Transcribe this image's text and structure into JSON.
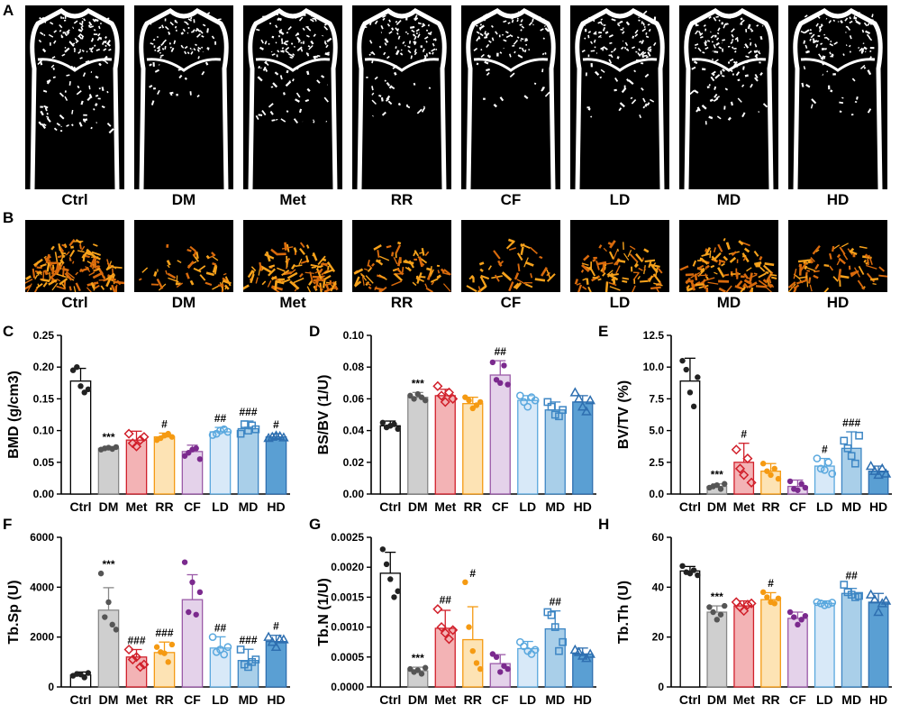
{
  "panels": {
    "A": "A",
    "B": "B",
    "C": "C",
    "D": "D",
    "E": "E",
    "F": "F",
    "G": "G",
    "H": "H"
  },
  "groups": [
    "Ctrl",
    "DM",
    "Met",
    "RR",
    "CF",
    "LD",
    "MD",
    "HD"
  ],
  "colors": {
    "fill": [
      "#ffffff",
      "#cfcfcf",
      "#f3b3b5",
      "#fde3b4",
      "#e4d2ea",
      "#d8e9f8",
      "#a9cfe9",
      "#5a9fd3"
    ],
    "point": [
      "#222222",
      "#555555",
      "#d11f2a",
      "#f59a12",
      "#7b2a8e",
      "#5aa8de",
      "#3d86c4",
      "#2e6fb0"
    ],
    "bar_edge": [
      "#000000",
      "#888888",
      "#d11f2a",
      "#f59a12",
      "#9b5aa8",
      "#5aa8de",
      "#3d86c4",
      "#2e6fb0"
    ],
    "markers": [
      "dot",
      "dot",
      "diamond",
      "dot",
      "dot",
      "circle",
      "square",
      "triangle"
    ]
  },
  "chart_data": [
    {
      "id": "C",
      "type": "bar",
      "ylabel": "BMD (g/cm3)",
      "ylim": [
        0,
        0.25
      ],
      "yticks": [
        "0.00",
        "0.05",
        "0.10",
        "0.15",
        "0.20",
        "0.25"
      ],
      "categories": [
        "Ctrl",
        "DM",
        "Met",
        "RR",
        "CF",
        "LD",
        "MD",
        "HD"
      ],
      "values": [
        0.178,
        0.072,
        0.085,
        0.09,
        0.067,
        0.098,
        0.103,
        0.09
      ],
      "errors": [
        0.02,
        0.003,
        0.014,
        0.006,
        0.01,
        0.007,
        0.012,
        0.005
      ],
      "points": [
        [
          0.195,
          0.2,
          0.17,
          0.16,
          0.165
        ],
        [
          0.07,
          0.072,
          0.073,
          0.071,
          0.074
        ],
        [
          0.095,
          0.08,
          0.075,
          0.085,
          0.09
        ],
        [
          0.085,
          0.088,
          0.092,
          0.095,
          0.09
        ],
        [
          0.06,
          0.065,
          0.07,
          0.072,
          0.055
        ],
        [
          0.093,
          0.095,
          0.1,
          0.102,
          0.098
        ],
        [
          0.095,
          0.11,
          0.1,
          0.108,
          0.102
        ],
        [
          0.088,
          0.09,
          0.092,
          0.091,
          0.089
        ]
      ],
      "annotations": [
        "",
        "***",
        "",
        "#",
        "",
        "##",
        "###",
        "#"
      ]
    },
    {
      "id": "D",
      "type": "bar",
      "ylabel": "BS/BV (1/U)",
      "ylim": [
        0,
        0.1
      ],
      "yticks": [
        "0.00",
        "0.02",
        "0.04",
        "0.06",
        "0.08",
        "0.10"
      ],
      "categories": [
        "Ctrl",
        "DM",
        "Met",
        "RR",
        "CF",
        "LD",
        "MD",
        "HD"
      ],
      "values": [
        0.043,
        0.061,
        0.062,
        0.057,
        0.075,
        0.059,
        0.053,
        0.058
      ],
      "errors": [
        0.003,
        0.003,
        0.004,
        0.004,
        0.009,
        0.003,
        0.005,
        0.004
      ],
      "points": [
        [
          0.045,
          0.042,
          0.043,
          0.044,
          0.041
        ],
        [
          0.062,
          0.06,
          0.063,
          0.061,
          0.059
        ],
        [
          0.068,
          0.062,
          0.058,
          0.064,
          0.06
        ],
        [
          0.061,
          0.059,
          0.054,
          0.056,
          0.058
        ],
        [
          0.083,
          0.072,
          0.07,
          0.081,
          0.069
        ],
        [
          0.062,
          0.058,
          0.055,
          0.061,
          0.059
        ],
        [
          0.058,
          0.055,
          0.05,
          0.049,
          0.053
        ],
        [
          0.064,
          0.06,
          0.055,
          0.052,
          0.059
        ]
      ],
      "annotations": [
        "",
        "***",
        "",
        "",
        "##",
        "",
        "",
        ""
      ]
    },
    {
      "id": "E",
      "type": "bar",
      "ylabel": "BV/TV (%)",
      "ylim": [
        0,
        12.5
      ],
      "yticks": [
        "0.0",
        "2.5",
        "5.0",
        "7.5",
        "10.0",
        "12.5"
      ],
      "categories": [
        "Ctrl",
        "DM",
        "Met",
        "RR",
        "CF",
        "LD",
        "MD",
        "HD"
      ],
      "values": [
        8.9,
        0.6,
        2.5,
        1.8,
        0.6,
        2.2,
        3.6,
        1.8
      ],
      "errors": [
        1.8,
        0.2,
        1.5,
        0.6,
        0.5,
        0.6,
        1.3,
        0.4
      ],
      "points": [
        [
          10.5,
          9.8,
          8.0,
          6.9,
          9.2
        ],
        [
          0.5,
          0.6,
          0.7,
          0.4,
          0.8
        ],
        [
          3.5,
          2.0,
          1.5,
          2.8,
          0.9
        ],
        [
          2.4,
          1.8,
          1.5,
          2.0,
          1.2
        ],
        [
          1.0,
          0.4,
          0.3,
          0.8,
          0.5
        ],
        [
          2.8,
          2.0,
          1.9,
          2.5,
          1.6
        ],
        [
          4.2,
          3.6,
          3.0,
          2.4,
          4.6
        ],
        [
          2.2,
          1.8,
          1.5,
          2.0,
          1.6
        ]
      ],
      "annotations": [
        "",
        "***",
        "#",
        "",
        "",
        "#",
        "###",
        ""
      ]
    },
    {
      "id": "F",
      "type": "bar",
      "ylabel": "Tb.Sp (U)",
      "ylim": [
        0,
        6000
      ],
      "yticks": [
        "0",
        "2000",
        "4000",
        "6000"
      ],
      "categories": [
        "Ctrl",
        "DM",
        "Met",
        "RR",
        "CF",
        "LD",
        "MD",
        "HD"
      ],
      "values": [
        480,
        3080,
        1200,
        1380,
        3500,
        1560,
        1060,
        1820
      ],
      "errors": [
        120,
        900,
        300,
        420,
        1000,
        450,
        450,
        250
      ],
      "points": [
        [
          450,
          520,
          500,
          380,
          560
        ],
        [
          4550,
          2800,
          3400,
          2500,
          2300
        ],
        [
          1500,
          1100,
          1200,
          800,
          900
        ],
        [
          1600,
          1400,
          1350,
          1000,
          1700
        ],
        [
          5000,
          3000,
          4200,
          2900,
          3800
        ],
        [
          2000,
          1400,
          1500,
          1300,
          1600
        ],
        [
          1500,
          900,
          800,
          1000,
          1100
        ],
        [
          2000,
          1800,
          1600,
          1900,
          1900
        ]
      ],
      "annotations": [
        "",
        "***",
        "###",
        "###",
        "",
        "##",
        "###",
        "#"
      ]
    },
    {
      "id": "G",
      "type": "bar",
      "ylabel": "Tb.N (1/U)",
      "ylim": [
        0,
        0.0025
      ],
      "yticks": [
        "0.0000",
        "0.0005",
        "0.0010",
        "0.0015",
        "0.0020",
        "0.0025"
      ],
      "categories": [
        "Ctrl",
        "DM",
        "Met",
        "RR",
        "CF",
        "LD",
        "MD",
        "HD"
      ],
      "values": [
        0.0019,
        0.00027,
        0.00098,
        0.00079,
        0.00039,
        0.00064,
        0.00097,
        0.00055
      ],
      "errors": [
        0.00035,
        6e-05,
        0.0003,
        0.00055,
        0.00015,
        0.00012,
        0.0003,
        0.0001
      ],
      "points": [
        [
          0.0023,
          0.00205,
          0.0018,
          0.0015,
          0.0016
        ],
        [
          0.0003,
          0.00025,
          0.00028,
          0.00022,
          0.00032
        ],
        [
          0.0013,
          0.001,
          0.0009,
          0.0008,
          0.00095
        ],
        [
          0.00175,
          0.001,
          0.0006,
          0.0004,
          0.0003
        ],
        [
          0.00055,
          0.0005,
          0.00025,
          0.00035,
          0.0003
        ],
        [
          0.00075,
          0.00068,
          0.0006,
          0.00055,
          0.00062
        ],
        [
          0.00125,
          0.0012,
          0.001,
          0.0006,
          0.00075
        ],
        [
          0.00062,
          0.00058,
          0.00052,
          0.00048,
          0.00055
        ]
      ],
      "annotations": [
        "",
        "***",
        "##",
        "#",
        "",
        "",
        "##",
        ""
      ]
    },
    {
      "id": "H",
      "type": "bar",
      "ylabel": "Tb.Th (U)",
      "ylim": [
        0,
        60
      ],
      "yticks": [
        "0",
        "20",
        "40",
        "60"
      ],
      "categories": [
        "Ctrl",
        "DM",
        "Met",
        "RR",
        "CF",
        "LD",
        "MD",
        "HD"
      ],
      "values": [
        46.5,
        30.0,
        32.5,
        35.0,
        27.5,
        33.5,
        37.5,
        34.0
      ],
      "errors": [
        1.8,
        2.5,
        2.0,
        2.8,
        2.5,
        1.0,
        2.0,
        3.5
      ],
      "points": [
        [
          48.5,
          46.0,
          45.5,
          46.8,
          44.8
        ],
        [
          32.0,
          30.0,
          27.0,
          29.0,
          32.5
        ],
        [
          34.0,
          32.0,
          30.5,
          33.0,
          33.5
        ],
        [
          38.0,
          36.0,
          34.0,
          33.5,
          35.5
        ],
        [
          30.0,
          28.0,
          25.0,
          27.0,
          28.5
        ],
        [
          34.0,
          33.5,
          32.8,
          33.2,
          33.8
        ],
        [
          41.0,
          38.0,
          37.0,
          36.0,
          36.5
        ],
        [
          37.0,
          35.0,
          30.0,
          33.5,
          34.5
        ]
      ],
      "annotations": [
        "",
        "***",
        "",
        "#",
        "",
        "",
        "##",
        ""
      ]
    }
  ]
}
